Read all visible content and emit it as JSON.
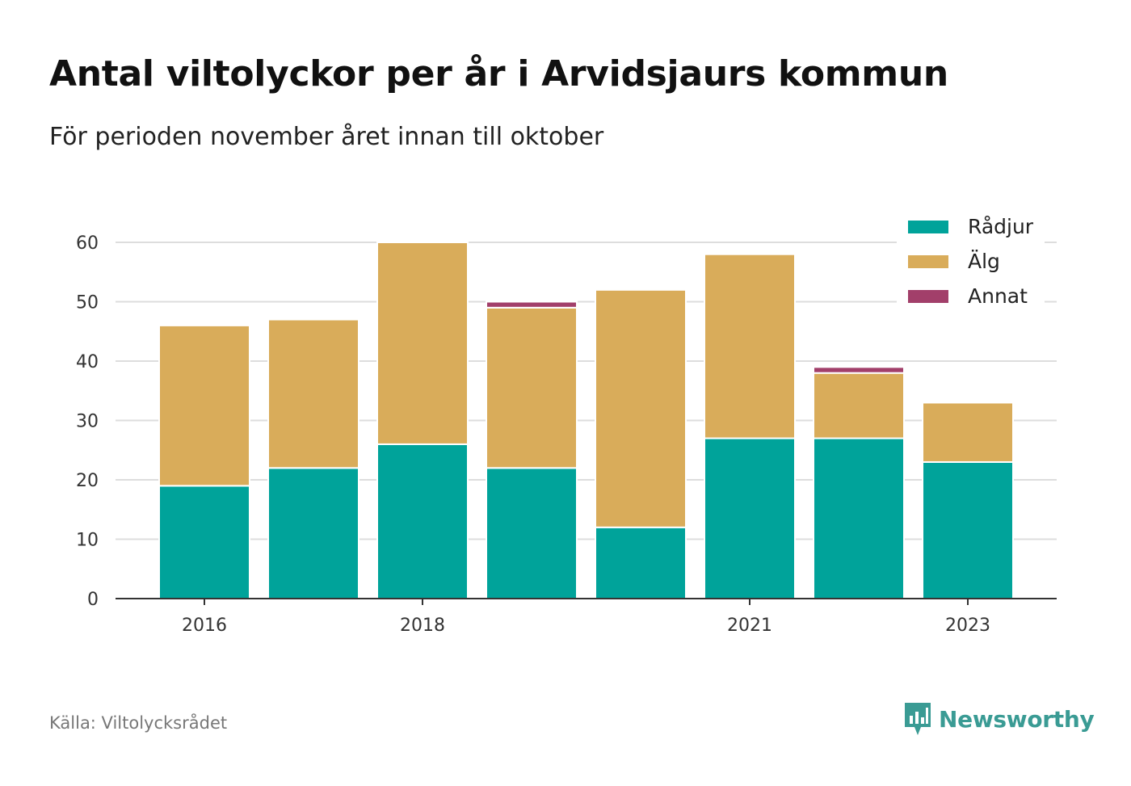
{
  "title": "Antal viltolyckor per år i Arvidsjaurs kommun",
  "subtitle": "För perioden november året innan till oktober",
  "source": "Källa: Viltolycksrådet",
  "brand": "Newsworthy",
  "colors": {
    "radjur": "#00a39a",
    "alg": "#d9ac5a",
    "annat": "#a23f6a",
    "grid": "#dddddd",
    "axis": "#333333",
    "brand": "#3a9b94"
  },
  "chart_data": {
    "type": "bar",
    "stacked": true,
    "categories": [
      "2016",
      "2017",
      "2018",
      "2019",
      "2020",
      "2021",
      "2022",
      "2023"
    ],
    "x_tick_labels": [
      "2016",
      "",
      "2018",
      "",
      "",
      "2021",
      "",
      "2023"
    ],
    "series": [
      {
        "name": "Rådjur",
        "color": "#00a39a",
        "values": [
          19,
          22,
          26,
          22,
          12,
          27,
          27,
          23
        ]
      },
      {
        "name": "Älg",
        "color": "#d9ac5a",
        "values": [
          27,
          25,
          34,
          27,
          40,
          31,
          11,
          10
        ]
      },
      {
        "name": "Annat",
        "color": "#a23f6a",
        "values": [
          0,
          0,
          0,
          1,
          0,
          0,
          1,
          0
        ]
      }
    ],
    "y_ticks": [
      0,
      10,
      20,
      30,
      40,
      50,
      60
    ],
    "ylim": [
      0,
      60
    ],
    "grid": true,
    "legend_position": "top-right"
  }
}
